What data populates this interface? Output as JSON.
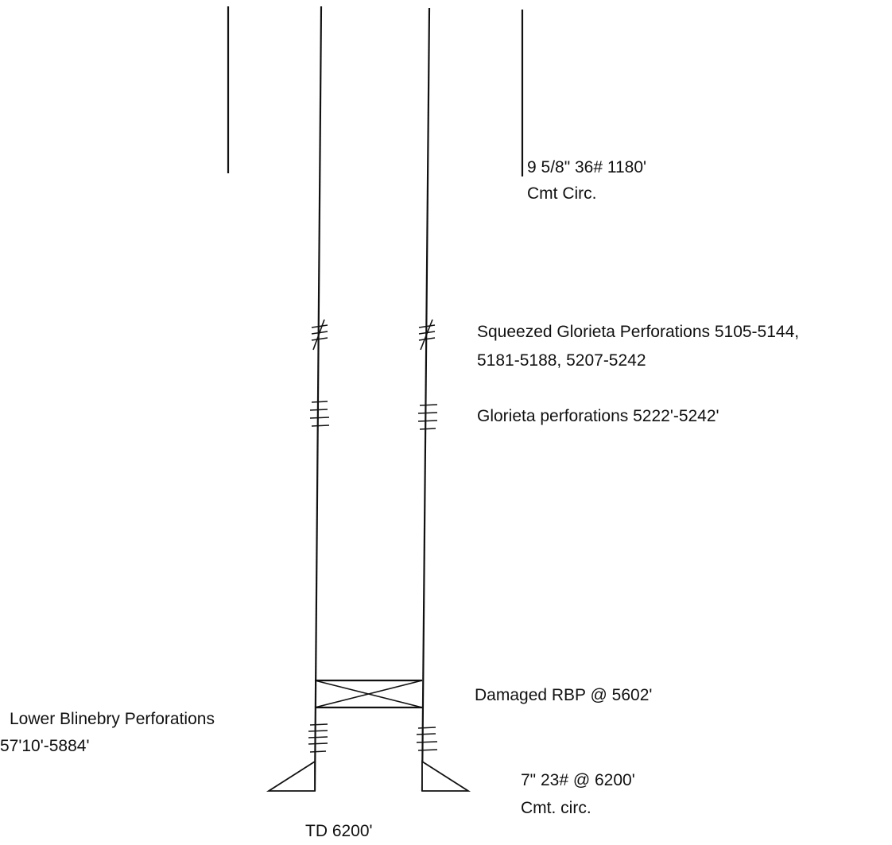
{
  "labels": {
    "surface_casing_line1": "9 5/8\" 36# 1180'",
    "surface_casing_line2": "Cmt Circ.",
    "squeezed_line1": "Squeezed Glorieta Perforations 5105-5144,",
    "squeezed_line2": "5181-5188, 5207-5242",
    "glorieta_perfs": "Glorieta perforations 5222'-5242'",
    "rbp": "Damaged RBP @ 5602'",
    "lower_blinebry_line1": "Lower Blinebry Perforations",
    "lower_blinebry_line2": "57'10'-5884'",
    "production_casing_line1": "7\" 23# @ 6200'",
    "production_casing_line2": "Cmt. circ.",
    "td": "TD 6200'"
  },
  "colors": {
    "line": "#111111",
    "background": "#ffffff"
  }
}
